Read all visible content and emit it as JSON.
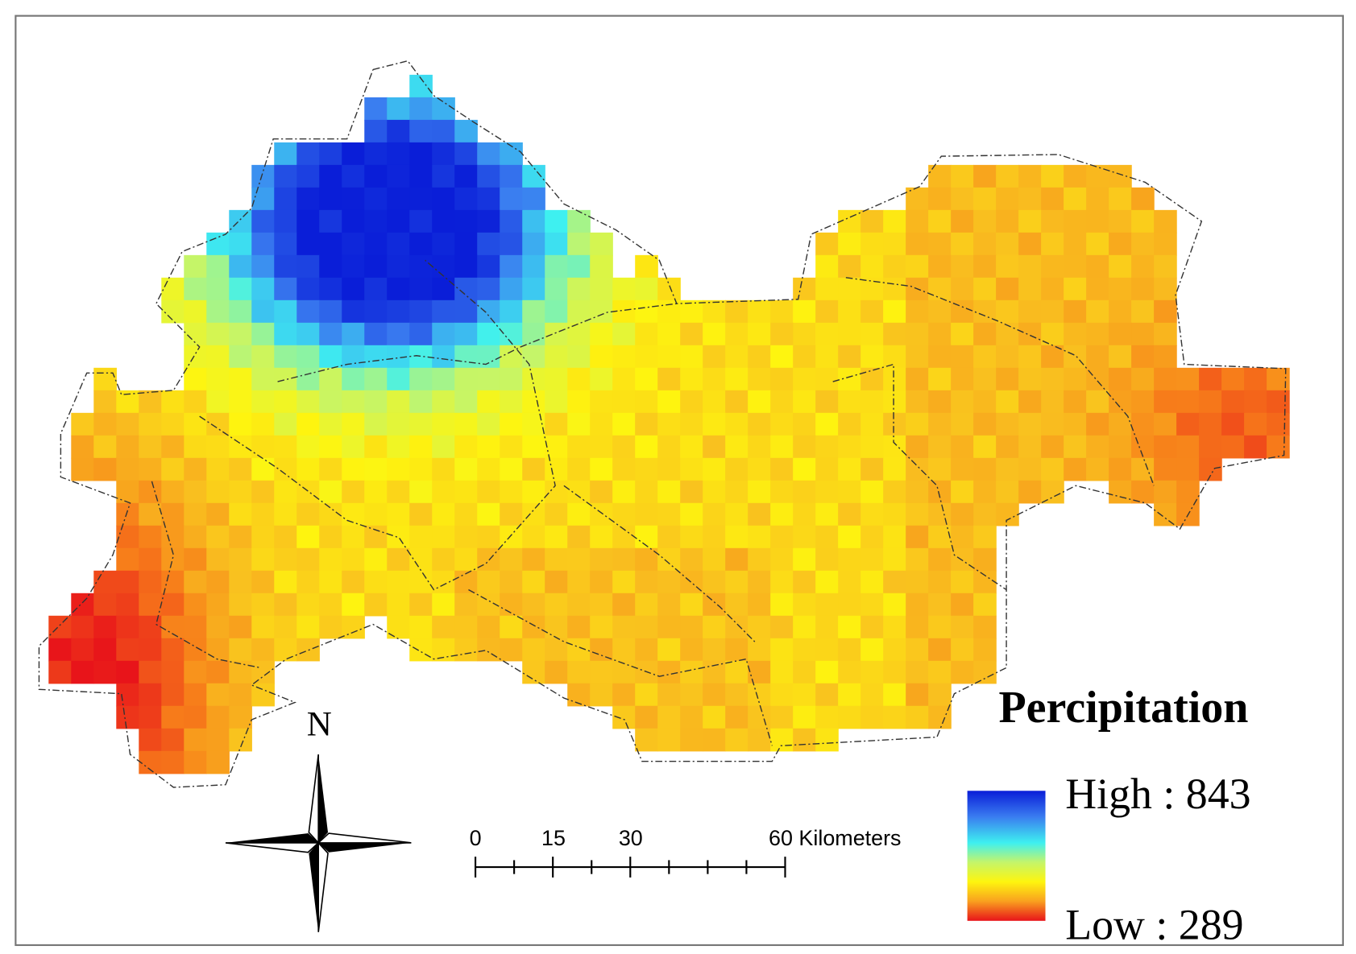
{
  "legend": {
    "title": "Percipitation",
    "high_label": "High : 843",
    "low_label": "Low : 289"
  },
  "north_arrow": {
    "label": "N"
  },
  "scale_bar": {
    "labels": [
      "0",
      "15",
      "30",
      "60 Kilometers"
    ]
  }
}
